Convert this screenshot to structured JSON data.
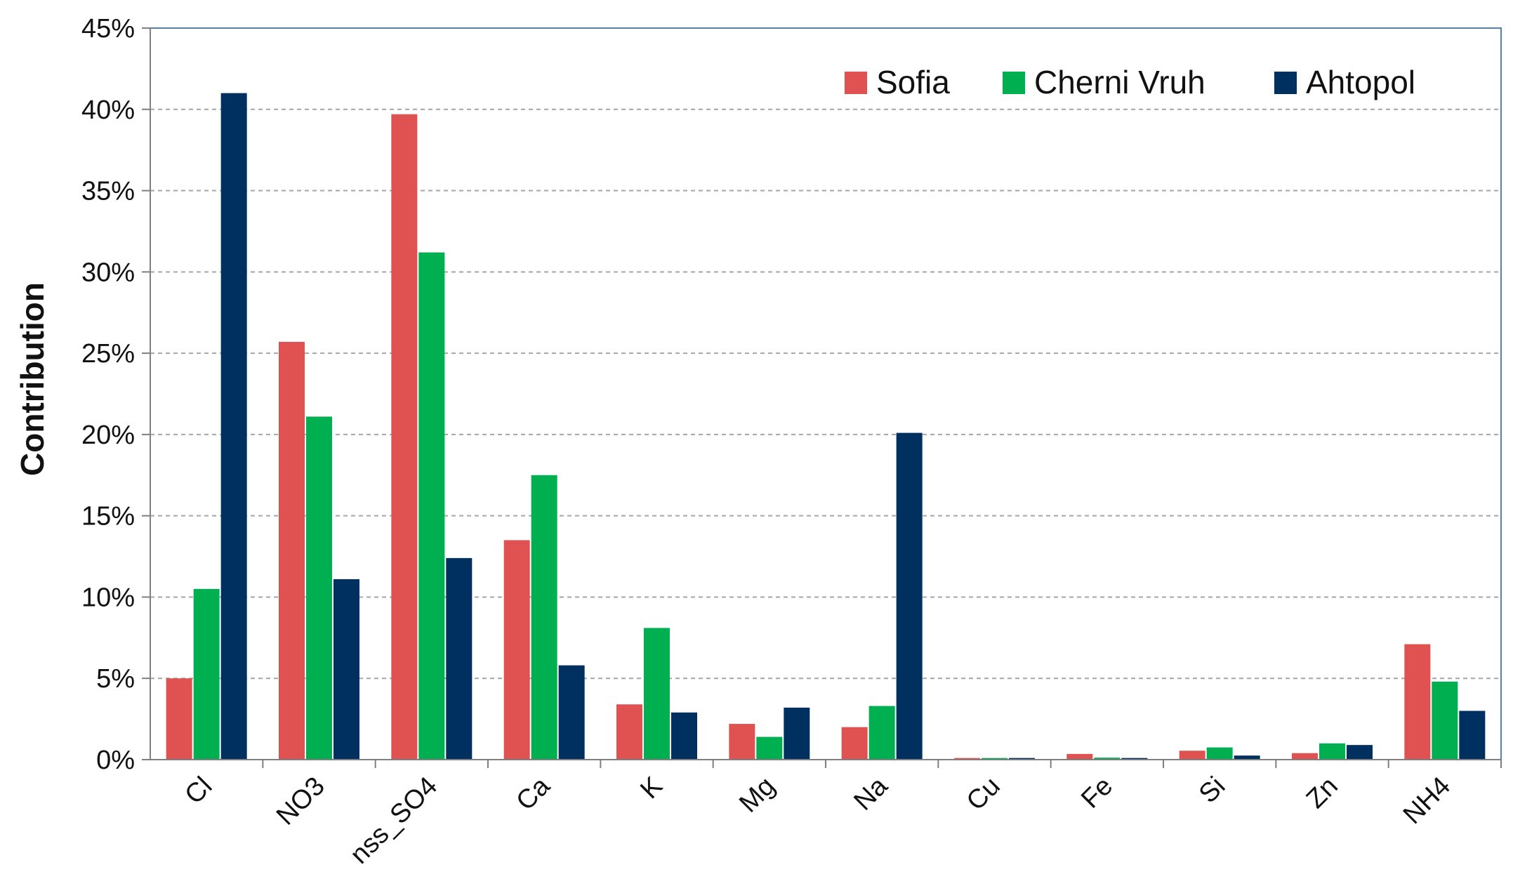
{
  "colors": {
    "sofia": "#e05252",
    "cherni_vruh": "#00b050",
    "ahtopol": "#003060",
    "grid": "#a6a6a6",
    "axis": "#7f7f7f",
    "plot_border": "#4f81bd"
  },
  "chart_data": {
    "type": "bar",
    "title": "",
    "xlabel": "",
    "ylabel": "Contribution",
    "ylim": [
      0,
      45
    ],
    "yticks": [
      "0%",
      "5%",
      "10%",
      "15%",
      "20%",
      "25%",
      "30%",
      "35%",
      "40%",
      "45%"
    ],
    "grid": true,
    "legend_position": "top-right",
    "categories": [
      "Cl",
      "NO3",
      "nss_SO4",
      "Ca",
      "K",
      "Mg",
      "Na",
      "Cu",
      "Fe",
      "Si",
      "Zn",
      "NH4"
    ],
    "series": [
      {
        "name": "Sofia",
        "values": [
          5.0,
          25.7,
          39.7,
          13.5,
          3.4,
          2.2,
          2.0,
          0.1,
          0.35,
          0.55,
          0.4,
          7.1
        ]
      },
      {
        "name": "Cherni Vruh",
        "values": [
          10.5,
          21.1,
          31.2,
          17.5,
          8.1,
          1.4,
          3.3,
          0.1,
          0.12,
          0.75,
          1.0,
          4.8
        ]
      },
      {
        "name": "Ahtopol",
        "values": [
          41.0,
          11.1,
          12.4,
          5.8,
          2.9,
          3.2,
          20.1,
          0.1,
          0.1,
          0.25,
          0.9,
          3.0
        ]
      }
    ]
  }
}
